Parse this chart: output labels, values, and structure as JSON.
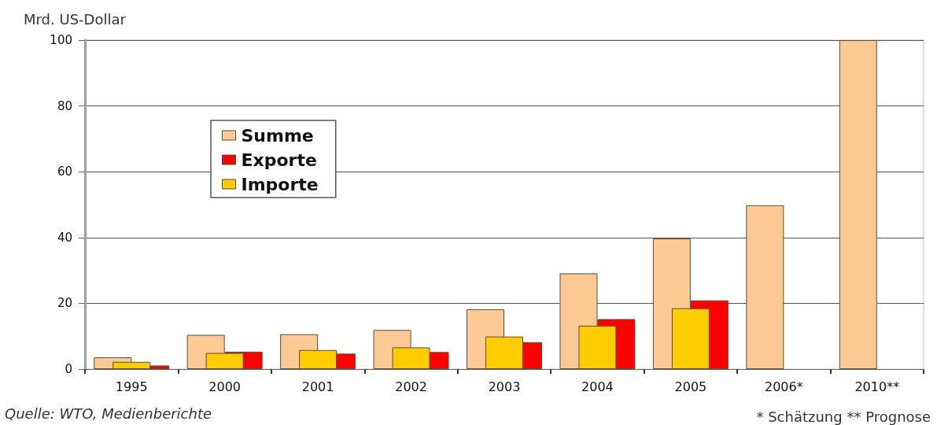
{
  "chart_data": {
    "type": "bar",
    "ylabel": "Mrd. US-Dollar",
    "categories": [
      "1995",
      "2000",
      "2001",
      "2002",
      "2003",
      "2004",
      "2005",
      "2006*",
      "2010**"
    ],
    "series": [
      {
        "name": "Summe",
        "color": "#fdca96",
        "values": [
          3.6,
          10.4,
          10.6,
          11.9,
          18.2,
          29.1,
          39.7,
          49.8,
          100
        ]
      },
      {
        "name": "Importe",
        "color": "#ffcc00",
        "values": [
          2.2,
          4.9,
          5.8,
          6.6,
          9.9,
          13.2,
          18.5,
          null,
          null
        ]
      },
      {
        "name": "Exporte",
        "color": "#ff0000",
        "values": [
          1.1,
          5.3,
          4.7,
          5.2,
          8.2,
          15.2,
          20.9,
          null,
          null
        ]
      }
    ],
    "ylim": [
      0,
      100
    ],
    "yticks": [
      0,
      20,
      40,
      60,
      80,
      100
    ],
    "grid": "y",
    "legend": "top left",
    "annotations": [
      "Quelle: WTO, Medienberichte",
      "* Schätzung ** Prognose"
    ]
  }
}
